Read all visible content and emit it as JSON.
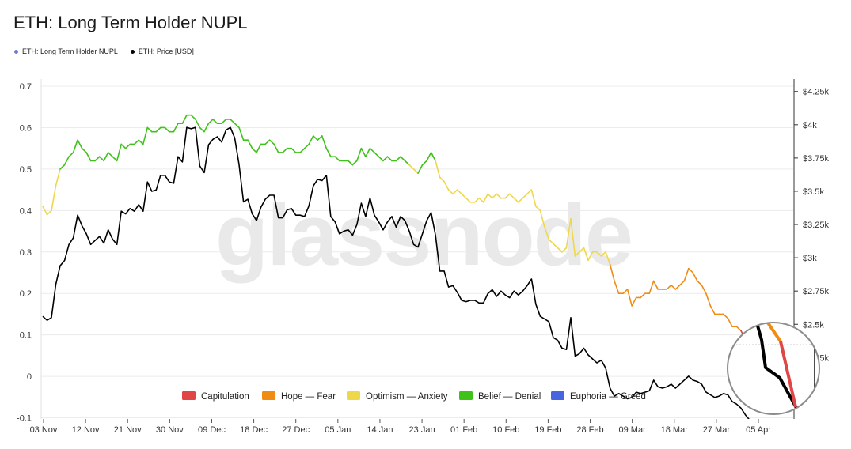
{
  "header": {
    "title": "ETH: Long Term Holder NUPL"
  },
  "legend": [
    {
      "label": "ETH: Long Term Holder NUPL",
      "color": "#6b7fd7",
      "name": "legend-nupl"
    },
    {
      "label": "ETH: Price [USD]",
      "color": "#000000",
      "name": "legend-price"
    }
  ],
  "watermark": "glassnode",
  "colors": {
    "capitulation": "#e04646",
    "hope_fear": "#f08c14",
    "optimism_anxiety": "#eed84a",
    "belief_denial": "#3fc21a",
    "euphoria_greed": "#4865e0",
    "price": "#000000"
  },
  "chart_data": {
    "type": "line",
    "title": "ETH: Long Term Holder NUPL",
    "x_tick_labels": [
      "03 Nov",
      "12 Nov",
      "21 Nov",
      "30 Nov",
      "09 Dec",
      "18 Dec",
      "27 Dec",
      "05 Jan",
      "14 Jan",
      "23 Jan",
      "01 Feb",
      "10 Feb",
      "19 Feb",
      "28 Feb",
      "09 Mar",
      "18 Mar",
      "27 Mar",
      "05 Apr"
    ],
    "left_axis": {
      "ylim": [
        -0.12,
        0.7
      ],
      "ticks": [
        -0.1,
        0,
        0.1,
        0.2,
        0.3,
        0.4,
        0.5,
        0.6,
        0.7
      ]
    },
    "right_axis": {
      "ylim": [
        1735,
        4290
      ],
      "ticks": [
        "$2.25k",
        "$2.5k",
        "$2.75k",
        "$3k",
        "$3.25k",
        "$3.5k",
        "$3.75k",
        "$4k",
        "$4.25k"
      ]
    },
    "phase_legend": [
      {
        "label": "Capitulation",
        "color": "#e04646"
      },
      {
        "label": "Hope — Fear",
        "color": "#f08c14"
      },
      {
        "label": "Optimism — Anxiety",
        "color": "#eed84a"
      },
      {
        "label": "Belief — Denial",
        "color": "#3fc21a"
      },
      {
        "label": "Euphoria — Greed",
        "color": "#4865e0"
      }
    ],
    "series": [
      {
        "name": "ETH: Long Term Holder NUPL",
        "axis": "left",
        "values": [
          0.41,
          0.39,
          0.4,
          0.46,
          0.5,
          0.51,
          0.53,
          0.54,
          0.57,
          0.55,
          0.54,
          0.52,
          0.52,
          0.53,
          0.52,
          0.54,
          0.53,
          0.52,
          0.56,
          0.55,
          0.56,
          0.56,
          0.57,
          0.56,
          0.6,
          0.59,
          0.59,
          0.6,
          0.6,
          0.59,
          0.59,
          0.61,
          0.61,
          0.63,
          0.63,
          0.62,
          0.6,
          0.59,
          0.61,
          0.62,
          0.61,
          0.61,
          0.62,
          0.62,
          0.61,
          0.6,
          0.57,
          0.57,
          0.55,
          0.54,
          0.56,
          0.56,
          0.57,
          0.56,
          0.54,
          0.54,
          0.55,
          0.55,
          0.54,
          0.54,
          0.55,
          0.56,
          0.58,
          0.57,
          0.58,
          0.55,
          0.53,
          0.53,
          0.52,
          0.52,
          0.52,
          0.51,
          0.52,
          0.55,
          0.53,
          0.55,
          0.54,
          0.53,
          0.52,
          0.53,
          0.52,
          0.52,
          0.53,
          0.52,
          0.51,
          0.5,
          0.49,
          0.51,
          0.52,
          0.54,
          0.52,
          0.48,
          0.47,
          0.45,
          0.44,
          0.45,
          0.44,
          0.43,
          0.42,
          0.42,
          0.43,
          0.42,
          0.44,
          0.43,
          0.44,
          0.43,
          0.43,
          0.44,
          0.43,
          0.42,
          0.43,
          0.44,
          0.45,
          0.41,
          0.4,
          0.36,
          0.33,
          0.32,
          0.31,
          0.3,
          0.31,
          0.38,
          0.29,
          0.3,
          0.31,
          0.28,
          0.3,
          0.3,
          0.29,
          0.3,
          0.27,
          0.23,
          0.2,
          0.2,
          0.21,
          0.17,
          0.19,
          0.19,
          0.2,
          0.2,
          0.23,
          0.21,
          0.21,
          0.21,
          0.22,
          0.21,
          0.22,
          0.23,
          0.26,
          0.25,
          0.23,
          0.22,
          0.2,
          0.17,
          0.15,
          0.15,
          0.15,
          0.14,
          0.12,
          0.12,
          0.11,
          0.09,
          0.07,
          0.04,
          0.03
        ],
        "phases": [
          "optimism_anxiety",
          "optimism_anxiety",
          "optimism_anxiety",
          "optimism_anxiety",
          "optimism_anxiety",
          "belief_denial",
          "belief_denial",
          "belief_denial",
          "belief_denial",
          "belief_denial",
          "belief_denial",
          "belief_denial",
          "belief_denial",
          "belief_denial",
          "belief_denial",
          "belief_denial",
          "belief_denial",
          "belief_denial",
          "belief_denial",
          "belief_denial",
          "belief_denial",
          "belief_denial",
          "belief_denial",
          "belief_denial",
          "belief_denial",
          "belief_denial",
          "belief_denial",
          "belief_denial",
          "belief_denial",
          "belief_denial",
          "belief_denial",
          "belief_denial",
          "belief_denial",
          "belief_denial",
          "belief_denial",
          "belief_denial",
          "belief_denial",
          "belief_denial",
          "belief_denial",
          "belief_denial",
          "belief_denial",
          "belief_denial",
          "belief_denial",
          "belief_denial",
          "belief_denial",
          "belief_denial",
          "belief_denial",
          "belief_denial",
          "belief_denial",
          "belief_denial",
          "belief_denial",
          "belief_denial",
          "belief_denial",
          "belief_denial",
          "belief_denial",
          "belief_denial",
          "belief_denial",
          "belief_denial",
          "belief_denial",
          "belief_denial",
          "belief_denial",
          "belief_denial",
          "belief_denial",
          "belief_denial",
          "belief_denial",
          "belief_denial",
          "belief_denial",
          "belief_denial",
          "belief_denial",
          "belief_denial",
          "belief_denial",
          "belief_denial",
          "belief_denial",
          "belief_denial",
          "belief_denial",
          "belief_denial",
          "belief_denial",
          "belief_denial",
          "belief_denial",
          "belief_denial",
          "belief_denial",
          "belief_denial",
          "belief_denial",
          "belief_denial",
          "belief_denial",
          "optimism_anxiety",
          "optimism_anxiety",
          "belief_denial",
          "belief_denial",
          "belief_denial",
          "belief_denial",
          "optimism_anxiety",
          "optimism_anxiety",
          "optimism_anxiety",
          "optimism_anxiety",
          "optimism_anxiety",
          "optimism_anxiety",
          "optimism_anxiety",
          "optimism_anxiety",
          "optimism_anxiety",
          "optimism_anxiety",
          "optimism_anxiety",
          "optimism_anxiety",
          "optimism_anxiety",
          "optimism_anxiety",
          "optimism_anxiety",
          "optimism_anxiety",
          "optimism_anxiety",
          "optimism_anxiety",
          "optimism_anxiety",
          "optimism_anxiety",
          "optimism_anxiety",
          "optimism_anxiety",
          "optimism_anxiety",
          "optimism_anxiety",
          "optimism_anxiety",
          "optimism_anxiety",
          "optimism_anxiety",
          "optimism_anxiety",
          "optimism_anxiety",
          "optimism_anxiety",
          "optimism_anxiety",
          "optimism_anxiety",
          "optimism_anxiety",
          "optimism_anxiety",
          "optimism_anxiety",
          "optimism_anxiety",
          "optimism_anxiety",
          "optimism_anxiety",
          "optimism_anxiety",
          "optimism_anxiety",
          "hope_fear",
          "hope_fear",
          "hope_fear",
          "hope_fear",
          "hope_fear",
          "hope_fear",
          "hope_fear",
          "hope_fear",
          "hope_fear",
          "hope_fear",
          "hope_fear",
          "hope_fear",
          "hope_fear",
          "hope_fear",
          "hope_fear",
          "hope_fear",
          "hope_fear",
          "hope_fear",
          "hope_fear",
          "hope_fear",
          "hope_fear",
          "hope_fear",
          "hope_fear",
          "hope_fear",
          "hope_fear",
          "hope_fear",
          "hope_fear",
          "hope_fear",
          "hope_fear",
          "hope_fear",
          "capitulation",
          "capitulation",
          "capitulation"
        ]
      },
      {
        "name": "ETH: Price [USD]",
        "axis": "right",
        "values": [
          2560,
          2530,
          2550,
          2800,
          2940,
          2980,
          3100,
          3150,
          3320,
          3240,
          3180,
          3100,
          3130,
          3160,
          3110,
          3210,
          3140,
          3100,
          3350,
          3330,
          3370,
          3350,
          3400,
          3350,
          3570,
          3500,
          3510,
          3620,
          3620,
          3570,
          3560,
          3760,
          3720,
          3980,
          3970,
          3980,
          3690,
          3640,
          3850,
          3890,
          3910,
          3870,
          3960,
          3980,
          3900,
          3700,
          3420,
          3440,
          3330,
          3280,
          3380,
          3440,
          3470,
          3470,
          3300,
          3300,
          3360,
          3370,
          3320,
          3320,
          3310,
          3390,
          3540,
          3590,
          3580,
          3620,
          3310,
          3270,
          3180,
          3200,
          3210,
          3170,
          3250,
          3410,
          3310,
          3450,
          3320,
          3270,
          3210,
          3270,
          3310,
          3230,
          3310,
          3280,
          3200,
          3100,
          3080,
          3180,
          3280,
          3340,
          3170,
          2900,
          2900,
          2780,
          2790,
          2740,
          2680,
          2670,
          2680,
          2680,
          2660,
          2660,
          2730,
          2760,
          2710,
          2750,
          2720,
          2700,
          2750,
          2720,
          2750,
          2790,
          2840,
          2650,
          2560,
          2540,
          2520,
          2400,
          2380,
          2320,
          2310,
          2550,
          2260,
          2280,
          2320,
          2270,
          2240,
          2210,
          2230,
          2170,
          2020,
          1960,
          1980,
          1960,
          1940,
          1950,
          1990,
          1980,
          1990,
          2000,
          2080,
          2030,
          2020,
          2030,
          2050,
          2020,
          2050,
          2080,
          2110,
          2080,
          2070,
          2050,
          1990,
          1970,
          1950,
          1960,
          1980,
          1970,
          1920,
          1900,
          1870,
          1820,
          1780,
          1760,
          1740
        ],
        "color": "#000000"
      }
    ],
    "grid": true,
    "legend_position": "top-left"
  }
}
